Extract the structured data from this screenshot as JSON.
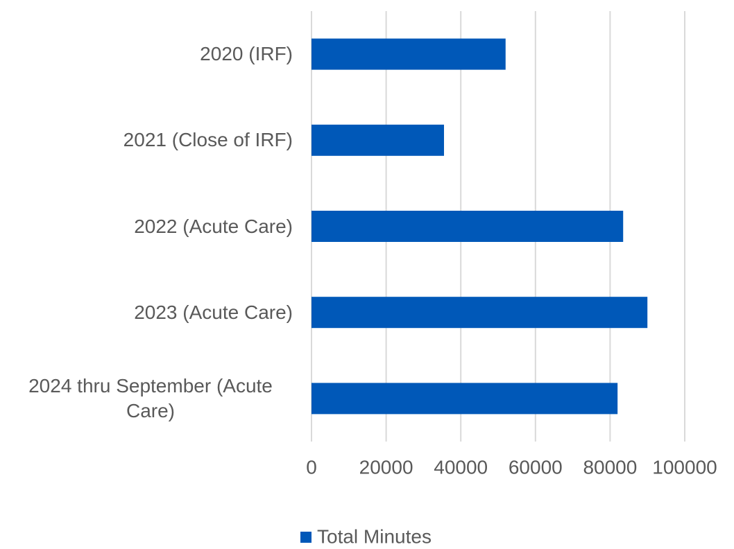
{
  "chart_data": {
    "type": "bar",
    "orientation": "horizontal",
    "categories": [
      "2020 (IRF)",
      "2021 (Close of IRF)",
      "2022 (Acute Care)",
      "2023 (Acute Care)",
      "2024 thru September (Acute Care)"
    ],
    "series": [
      {
        "name": "Total Minutes",
        "color": "#0058b8",
        "values": [
          52000,
          35500,
          83500,
          90000,
          82000
        ]
      }
    ],
    "xlim": [
      0,
      100000
    ],
    "xticks": [
      0,
      20000,
      40000,
      60000,
      80000,
      100000
    ],
    "grid": true,
    "legend": "bottom"
  }
}
